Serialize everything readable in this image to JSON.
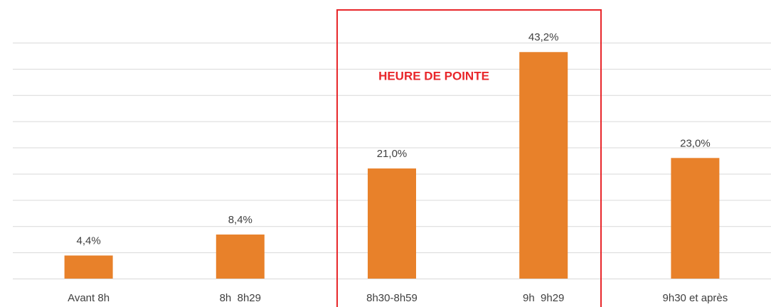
{
  "chart_data": {
    "type": "bar",
    "categories": [
      "Avant 8h",
      "8h  8h29",
      "8h30-8h59",
      "9h  9h29",
      "9h30 et après"
    ],
    "values": [
      4.4,
      8.4,
      21.0,
      43.2,
      23.0
    ],
    "value_labels": [
      "4,4%",
      "8,4%",
      "21,0%",
      "43,2%",
      "23,0%"
    ],
    "color": "#e8812a",
    "ylim": [
      0,
      45
    ],
    "yticks": [
      0,
      5,
      10,
      15,
      20,
      25,
      30,
      35,
      40,
      45
    ],
    "grid": true,
    "annotation": "HEURE DE POINTE"
  }
}
